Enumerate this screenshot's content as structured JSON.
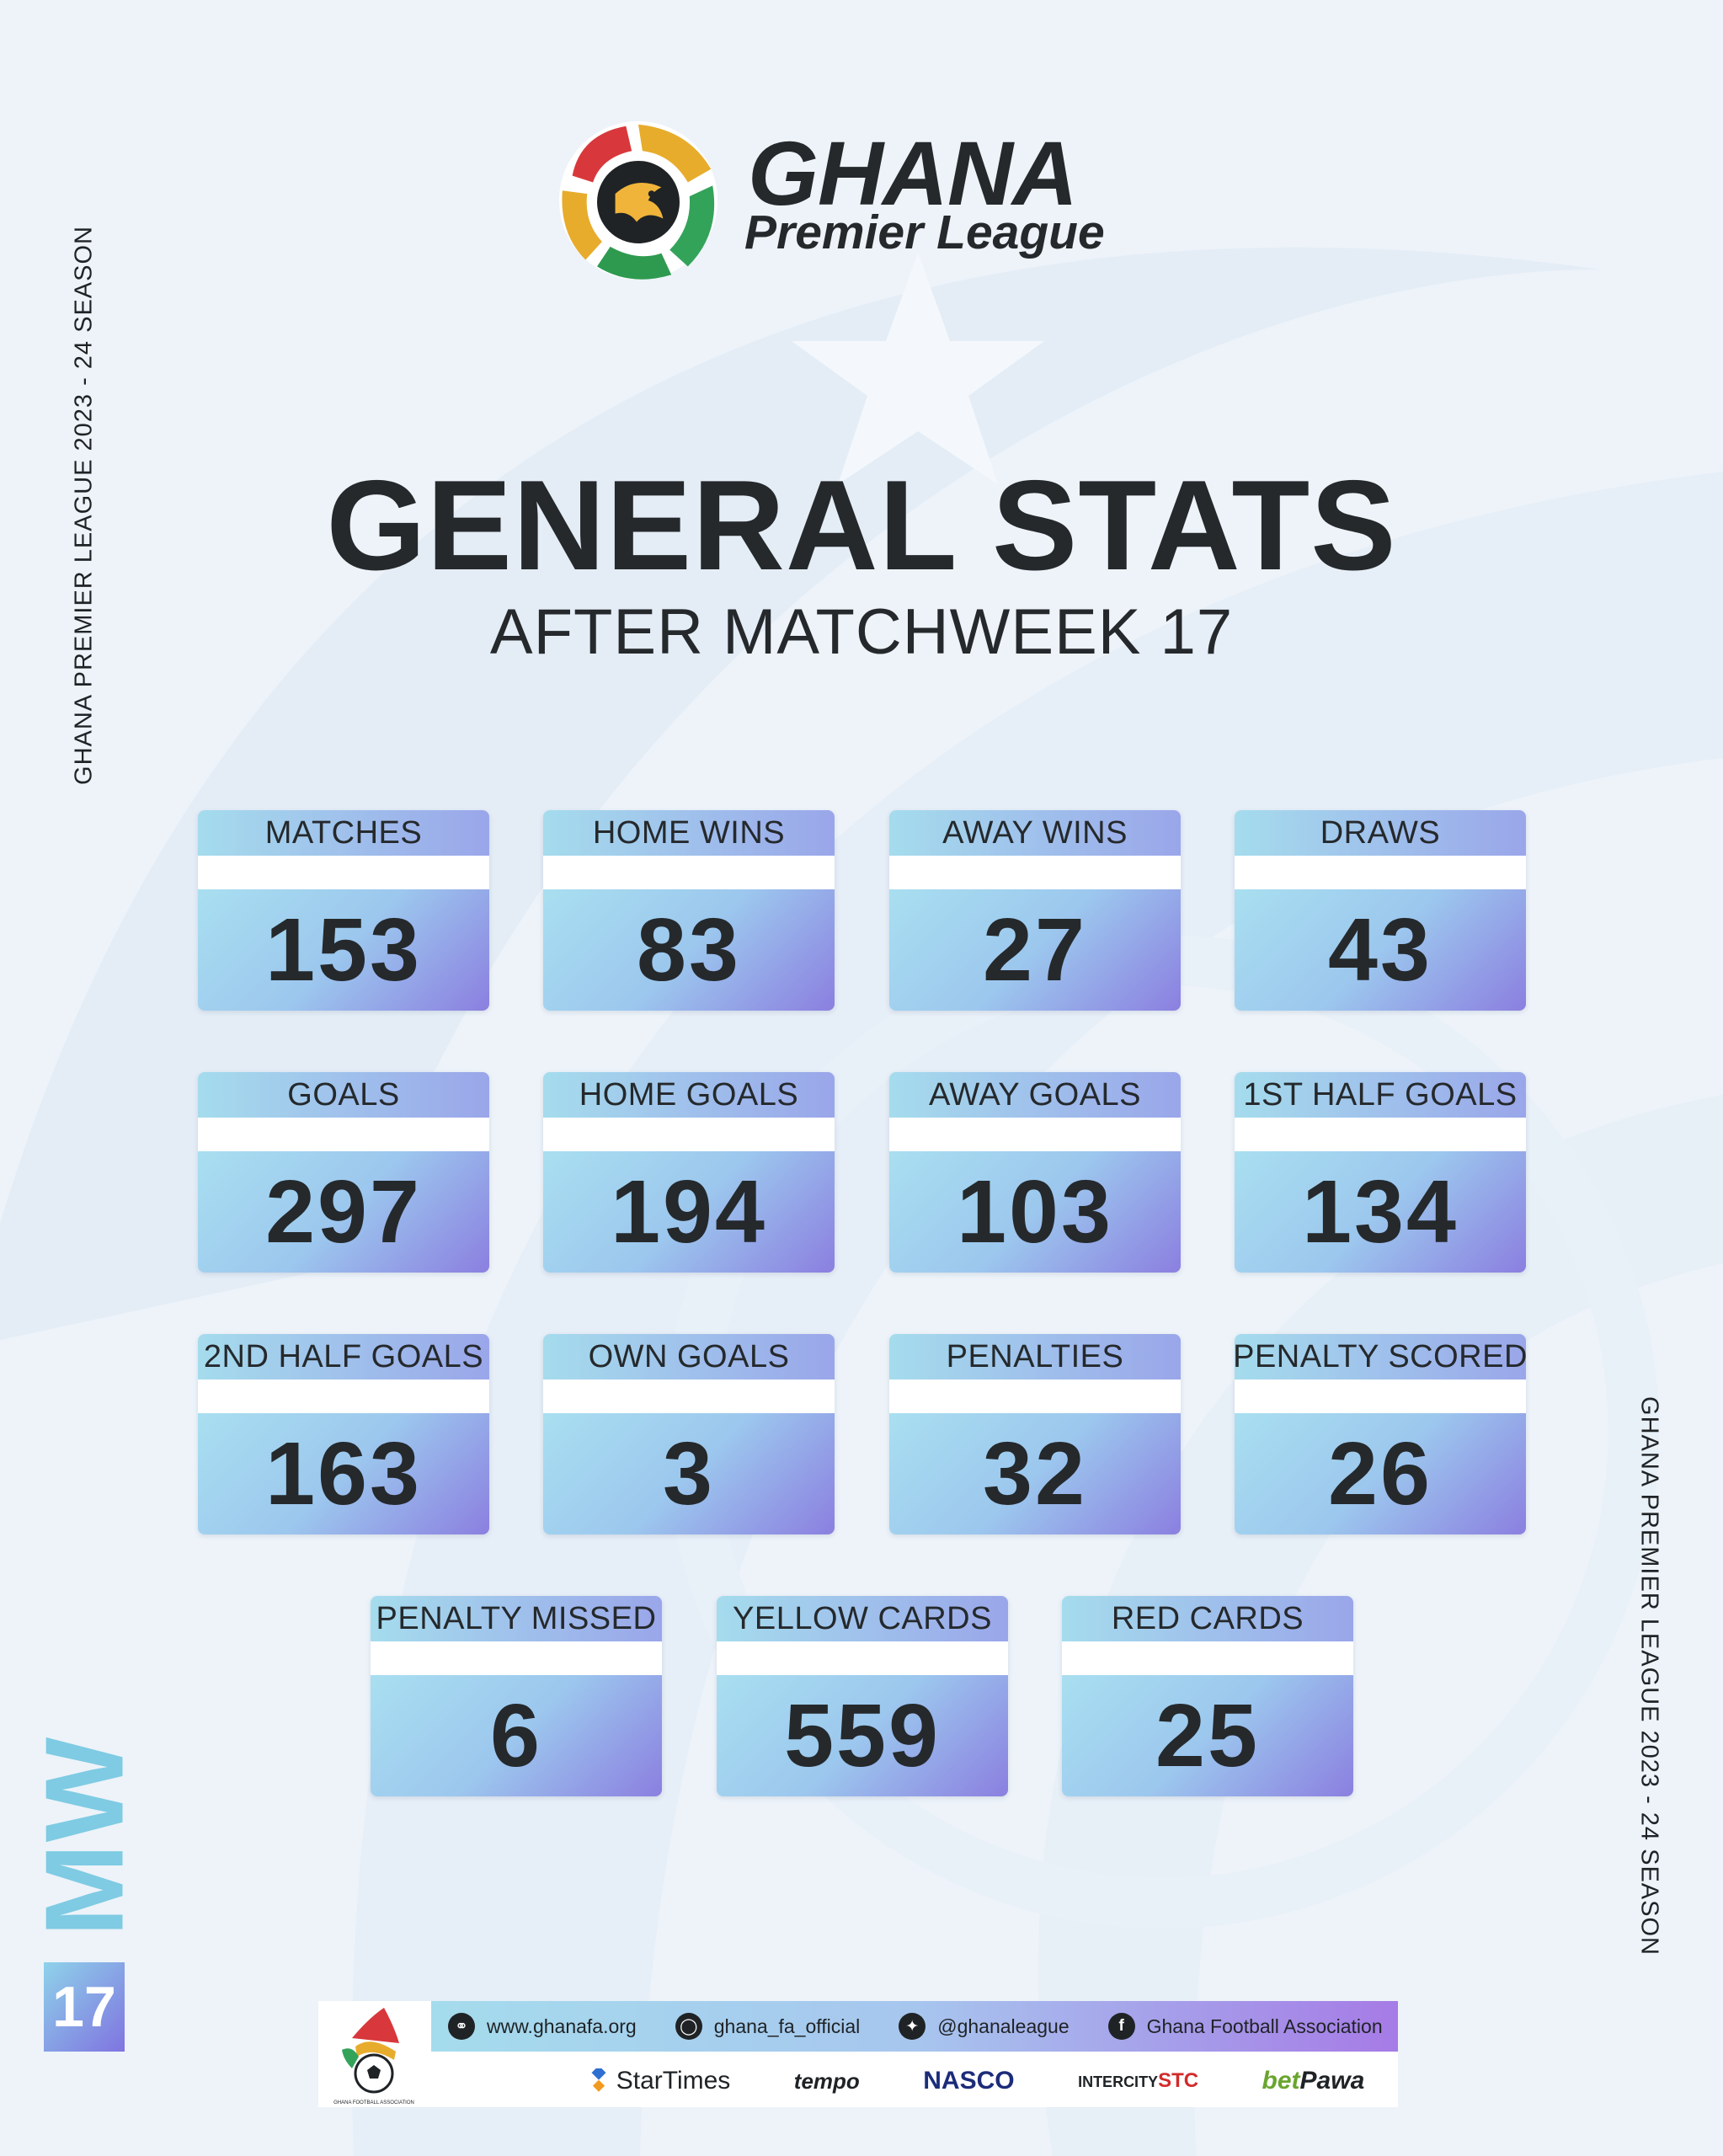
{
  "side_text": {
    "left": "GHANA PREMIER LEAGUE 2023 - 24 SEASON",
    "right": "GHANA  PREMIER LEAGUE 2023 - 24 SEASON"
  },
  "logo": {
    "line1": "GHANA",
    "line2": "Premier League"
  },
  "title": "GENERAL STATS",
  "subtitle": "AFTER MATCHWEEK 17",
  "stats": [
    {
      "label": "MATCHES",
      "value": "153"
    },
    {
      "label": "HOME WINS",
      "value": "83"
    },
    {
      "label": "AWAY WINS",
      "value": "27"
    },
    {
      "label": "DRAWS",
      "value": "43"
    },
    {
      "label": "GOALS",
      "value": "297"
    },
    {
      "label": "HOME GOALS",
      "value": "194"
    },
    {
      "label": "AWAY GOALS",
      "value": "103"
    },
    {
      "label": "1ST HALF GOALS",
      "value": "134"
    },
    {
      "label": "2ND HALF GOALS",
      "value": "163"
    },
    {
      "label": "OWN GOALS",
      "value": "3"
    },
    {
      "label": "PENALTIES",
      "value": "32"
    },
    {
      "label": "PENALTY SCORED",
      "value": "26"
    },
    {
      "label": "PENALTY MISSED",
      "value": "6"
    },
    {
      "label": "YELLOW CARDS",
      "value": "559"
    },
    {
      "label": "RED CARDS",
      "value": "25"
    }
  ],
  "badge": {
    "letters": "MW",
    "number": "17"
  },
  "footer": {
    "social": [
      {
        "icon": "globe-icon",
        "text": "www.ghanafa.org"
      },
      {
        "icon": "instagram-icon",
        "text": "ghana_fa_official"
      },
      {
        "icon": "twitter-icon",
        "text": "@ghanaleague"
      },
      {
        "icon": "facebook-icon",
        "text": "Ghana Football Association"
      }
    ],
    "sponsors": {
      "startimes": "StarTimes",
      "tempo": "tempo",
      "nasco": "NASCO",
      "stc_prefix": "INTERCITY",
      "stc": "STC",
      "betpawa_a": "bet",
      "betpawa_b": "Pawa"
    },
    "fa_logo_text": "GHANA FOOTBALL ASSOCIATION"
  },
  "colors": {
    "background": "#edf3f9",
    "text_dark": "#25292c",
    "card_cyan": "#a5dced",
    "card_purple": "#8b7fe0"
  }
}
